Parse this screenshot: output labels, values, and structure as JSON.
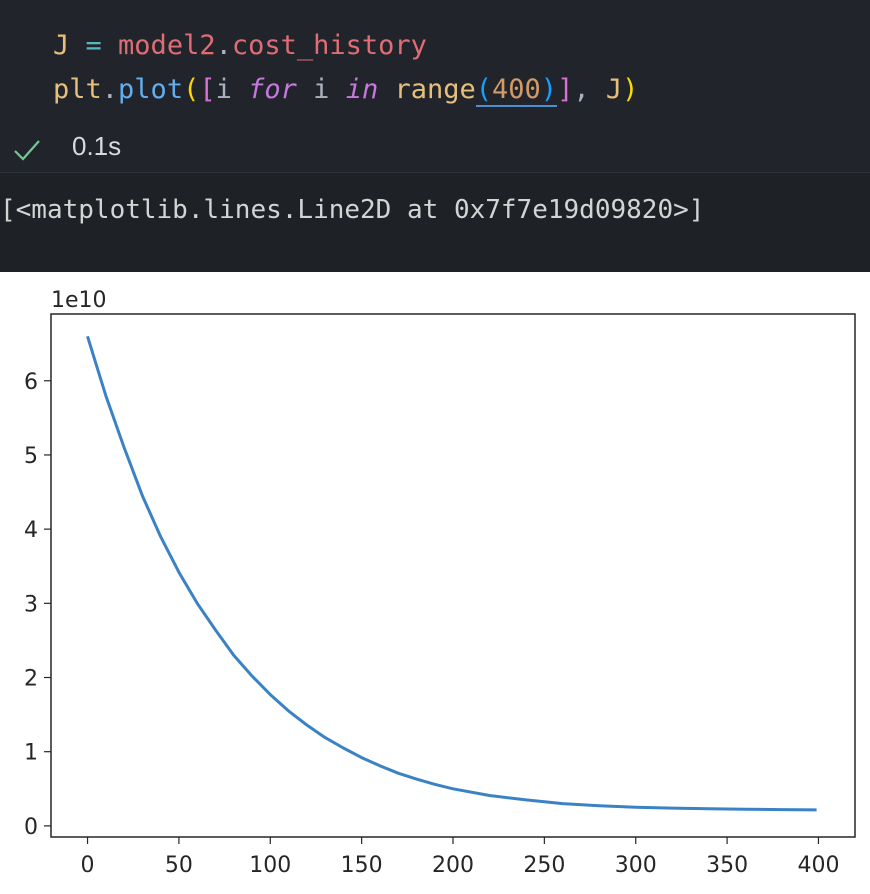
{
  "code": {
    "line1": {
      "var": "J",
      "op": " = ",
      "obj": "model2",
      "dot": ".",
      "attr": "cost_history"
    },
    "line2": {
      "obj": "plt",
      "dot": ".",
      "fn": "plot",
      "open_paren": "(",
      "open_bracket": "[",
      "i1": "i ",
      "kw_for": "for",
      "i2": " i ",
      "kw_in": "in",
      "sp": " ",
      "range_fn": "range",
      "open_paren2": "(",
      "num": "400",
      "close_paren2": ")",
      "close_bracket": "]",
      "comma": ", ",
      "arg2": "J",
      "close_paren": ")"
    }
  },
  "execution": {
    "status_icon": "check-icon",
    "time": "0.1s"
  },
  "output": {
    "text": "[<matplotlib.lines.Line2D at 0x7f7e19d09820>]"
  },
  "colors": {
    "code_bg": "#21252b",
    "output_bg": "#1e2227",
    "check_color": "#73c991",
    "line_color": "#3b82c4"
  },
  "chart_data": {
    "type": "line",
    "title": "",
    "xlabel": "",
    "ylabel": "",
    "offset_text": "1e10",
    "xlim": [
      -20,
      420
    ],
    "ylim": [
      -0.15,
      6.9
    ],
    "x_ticks": [
      0,
      50,
      100,
      150,
      200,
      250,
      300,
      350,
      400
    ],
    "y_ticks": [
      0,
      1,
      2,
      3,
      4,
      5,
      6
    ],
    "grid": false,
    "series": [
      {
        "x": [
          0,
          10,
          20,
          30,
          40,
          50,
          60,
          70,
          80,
          90,
          100,
          110,
          120,
          130,
          140,
          150,
          160,
          170,
          180,
          190,
          200,
          220,
          240,
          260,
          280,
          300,
          320,
          340,
          360,
          380,
          399
        ],
        "values": [
          6.6,
          5.8,
          5.1,
          4.45,
          3.9,
          3.42,
          3.0,
          2.64,
          2.3,
          2.02,
          1.77,
          1.55,
          1.36,
          1.19,
          1.05,
          0.92,
          0.81,
          0.71,
          0.63,
          0.56,
          0.5,
          0.41,
          0.35,
          0.3,
          0.27,
          0.25,
          0.24,
          0.23,
          0.225,
          0.22,
          0.215
        ]
      }
    ]
  }
}
